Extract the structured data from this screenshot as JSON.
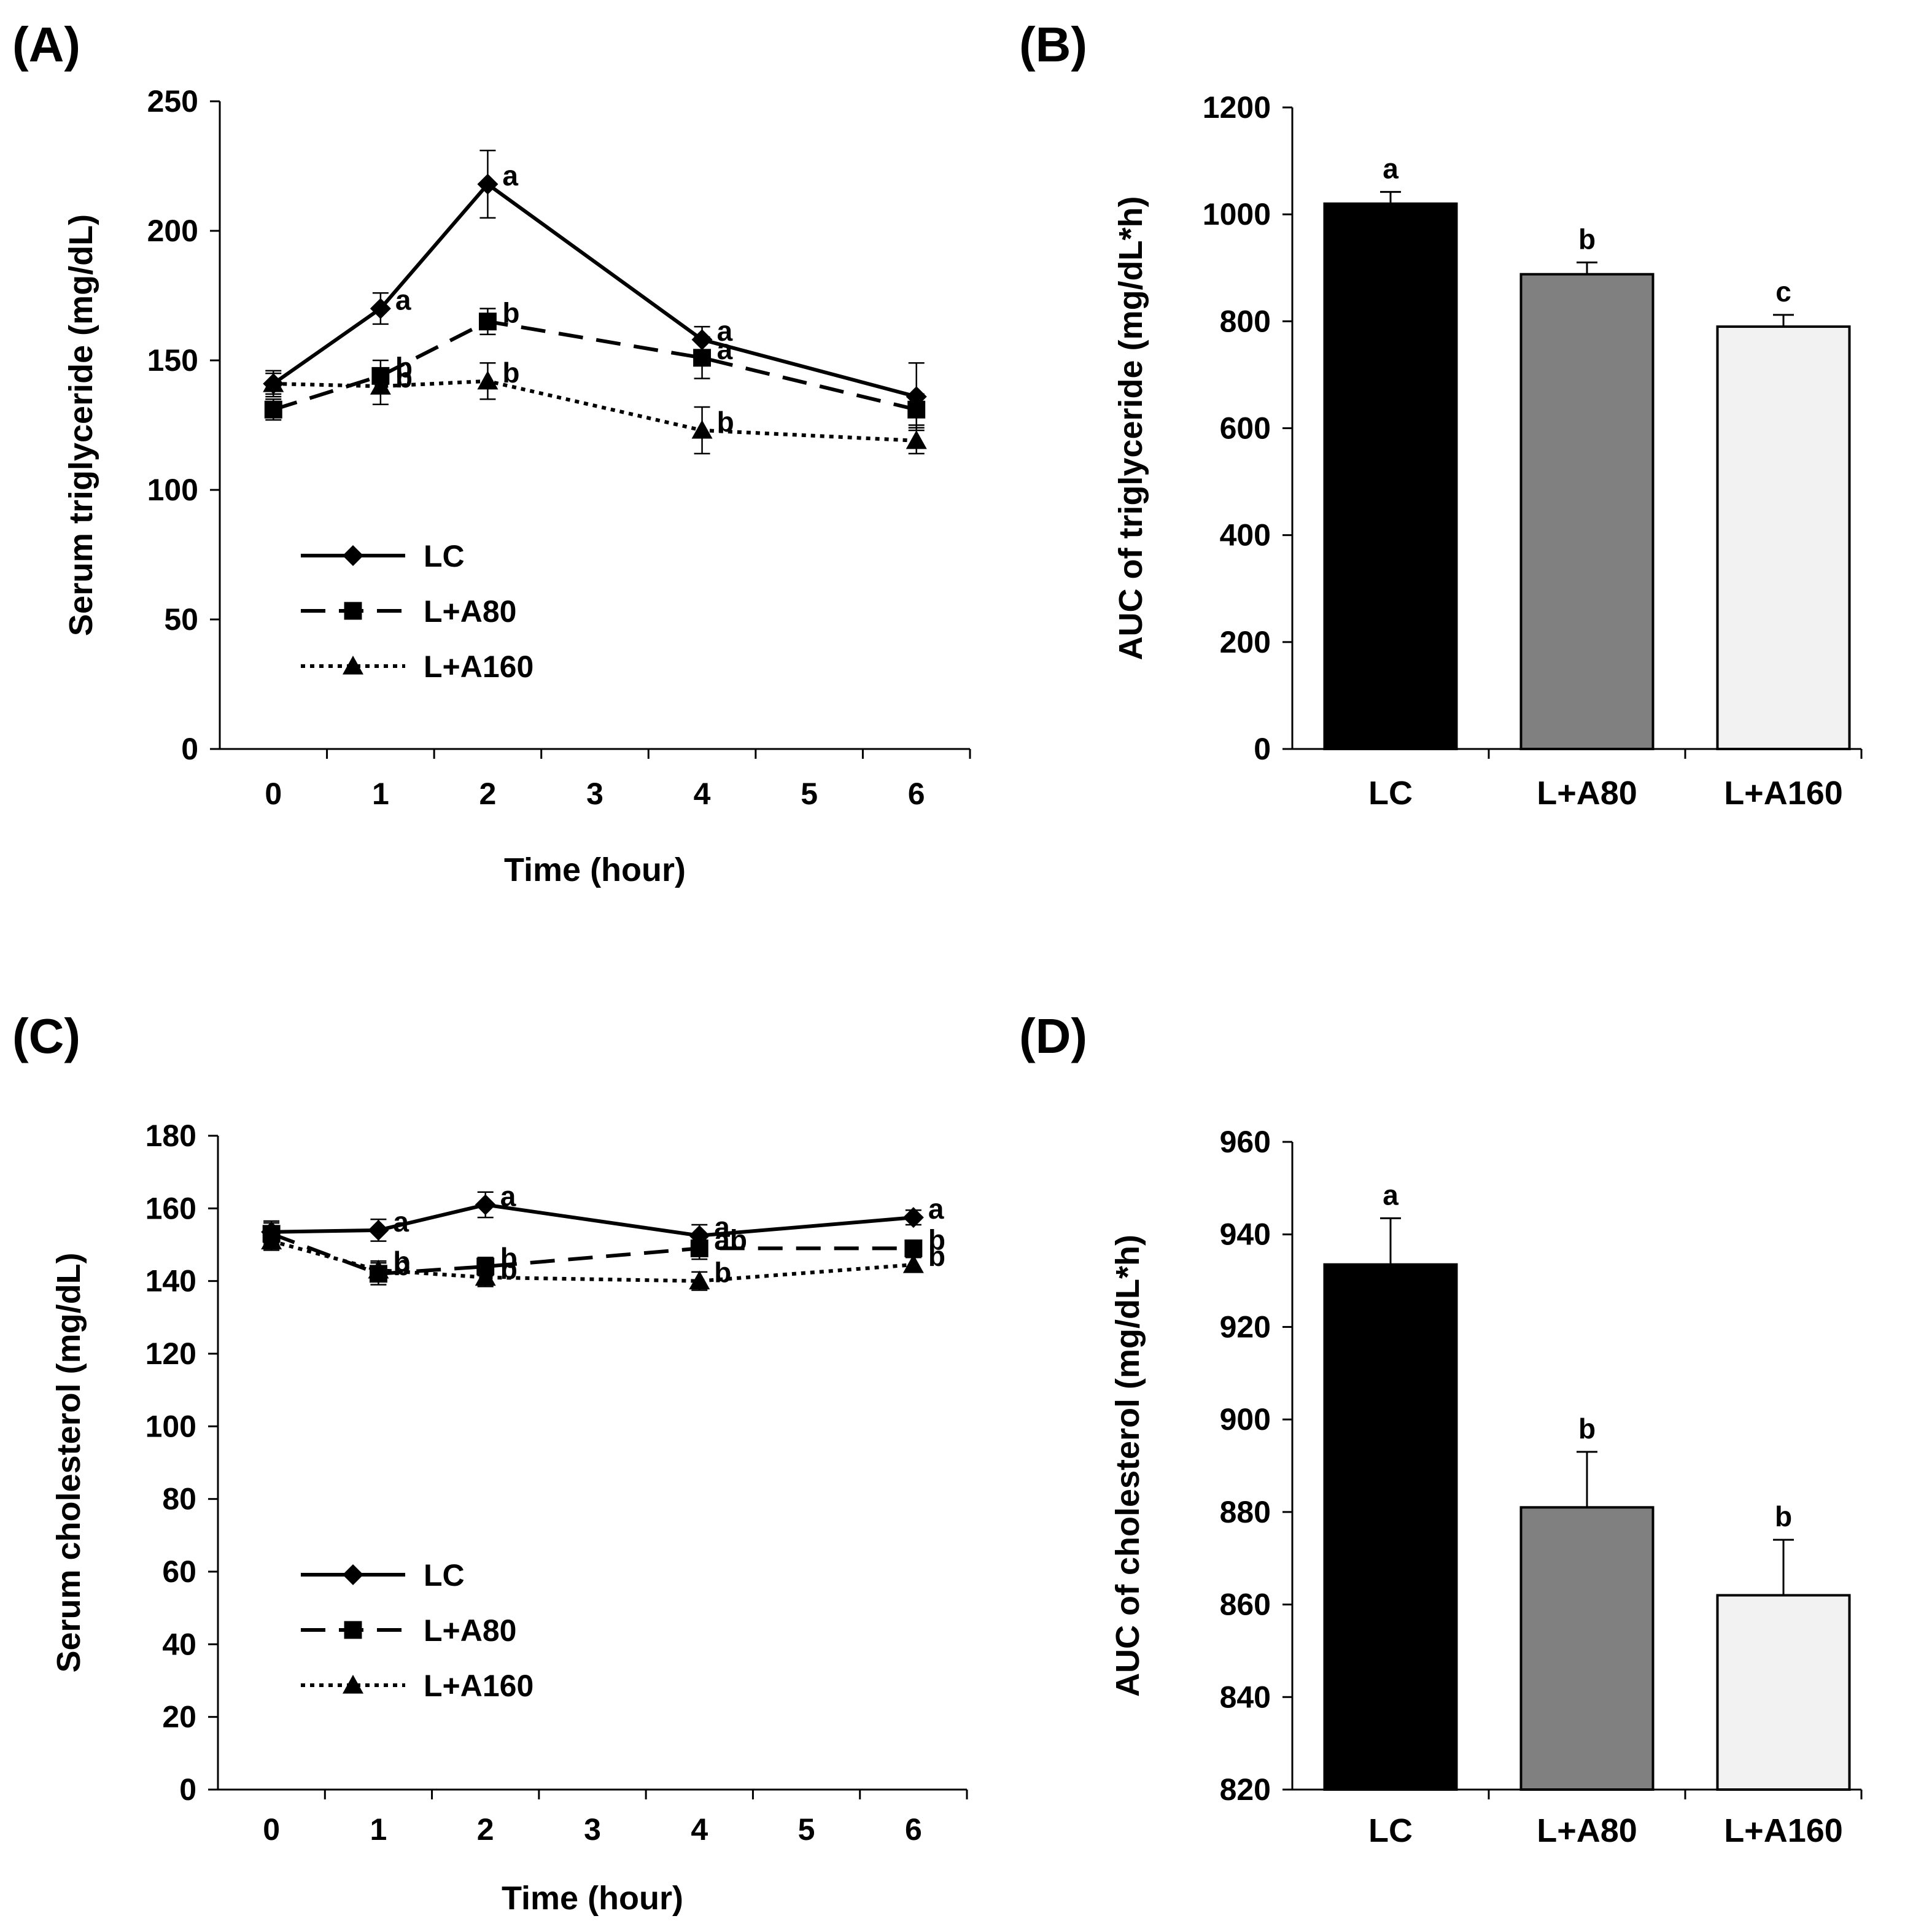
{
  "chart_data": [
    {
      "panel": "(A)",
      "type": "line",
      "xlabel": "Time (hour)",
      "ylabel": "Serum triglyceride (mg/dL)",
      "ylim": [
        0,
        250
      ],
      "yticks": [
        0,
        50,
        100,
        150,
        200,
        250
      ],
      "xlim": [
        -0.5,
        6.5
      ],
      "xticks": [
        0,
        1,
        2,
        3,
        4,
        5,
        6
      ],
      "x": [
        0,
        1,
        2,
        4,
        6
      ],
      "legend_placement": "lower-left",
      "series": [
        {
          "name": "LC",
          "marker": "diamond",
          "style": "solid",
          "values": [
            141,
            170,
            218,
            158,
            136
          ],
          "errors": [
            5,
            6,
            13,
            5,
            13
          ],
          "labels": [
            "",
            "a",
            "a",
            "a",
            ""
          ]
        },
        {
          "name": "L+A80",
          "marker": "square",
          "style": "dashed",
          "values": [
            131,
            144,
            165,
            151,
            131
          ],
          "errors": [
            4,
            6,
            5,
            8,
            6
          ],
          "labels": [
            "",
            "b",
            "b",
            "a",
            ""
          ]
        },
        {
          "name": "L+A160",
          "marker": "triangle",
          "style": "dotted",
          "values": [
            141,
            140,
            142,
            123,
            119
          ],
          "errors": [
            4,
            7,
            7,
            9,
            5
          ],
          "labels": [
            "",
            "b",
            "b",
            "b",
            ""
          ]
        }
      ]
    },
    {
      "panel": "(B)",
      "type": "bar",
      "xlabel": "",
      "ylabel": "AUC of triglyceride (mg/dL*h)",
      "ylim": [
        0,
        1200
      ],
      "yticks": [
        0,
        200,
        400,
        600,
        800,
        1000,
        1200
      ],
      "categories": [
        "LC",
        "L+A80",
        "L+A160"
      ],
      "values": [
        1020,
        888,
        790
      ],
      "errors": [
        22,
        22,
        22
      ],
      "labels": [
        "a",
        "b",
        "c"
      ],
      "colors": [
        "#000000",
        "#808080",
        "#f2f2f2"
      ]
    },
    {
      "panel": "(C)",
      "type": "line",
      "xlabel": "Time (hour)",
      "ylabel": "Serum cholesterol (mg/dL)",
      "ylim": [
        0,
        180
      ],
      "yticks": [
        0,
        20,
        40,
        60,
        80,
        100,
        120,
        140,
        160,
        180
      ],
      "xlim": [
        -0.5,
        6.5
      ],
      "xticks": [
        0,
        1,
        2,
        3,
        4,
        5,
        6
      ],
      "x": [
        0,
        1,
        2,
        4,
        6
      ],
      "legend_placement": "lower-left",
      "series": [
        {
          "name": "LC",
          "marker": "diamond",
          "style": "solid",
          "values": [
            153.5,
            154,
            161,
            152.5,
            157.5
          ],
          "errors": [
            3,
            3,
            3.5,
            3,
            2
          ],
          "labels": [
            "",
            "a",
            "a",
            "a",
            "a"
          ]
        },
        {
          "name": "L+A80",
          "marker": "square",
          "style": "dashed",
          "values": [
            153,
            142,
            144,
            149,
            149
          ],
          "errors": [
            3,
            3,
            2.5,
            3,
            2
          ],
          "labels": [
            "",
            "b",
            "b",
            "ab",
            "b"
          ]
        },
        {
          "name": "L+A160",
          "marker": "triangle",
          "style": "dotted",
          "values": [
            151,
            143,
            141,
            140,
            144.5
          ],
          "errors": [
            2.5,
            2.5,
            2.5,
            2.5,
            2
          ],
          "labels": [
            "",
            "b",
            "b",
            "b",
            "b"
          ]
        }
      ]
    },
    {
      "panel": "(D)",
      "type": "bar",
      "xlabel": "",
      "ylabel": "AUC of cholesterol (mg/dL*h)",
      "ylim": [
        820,
        960
      ],
      "yticks": [
        820,
        840,
        860,
        880,
        900,
        920,
        940,
        960
      ],
      "categories": [
        "LC",
        "L+A80",
        "L+A160"
      ],
      "values": [
        933.5,
        881,
        862
      ],
      "errors": [
        10,
        12,
        12
      ],
      "labels": [
        "a",
        "b",
        "b"
      ],
      "colors": [
        "#000000",
        "#808080",
        "#f2f2f2"
      ]
    }
  ]
}
